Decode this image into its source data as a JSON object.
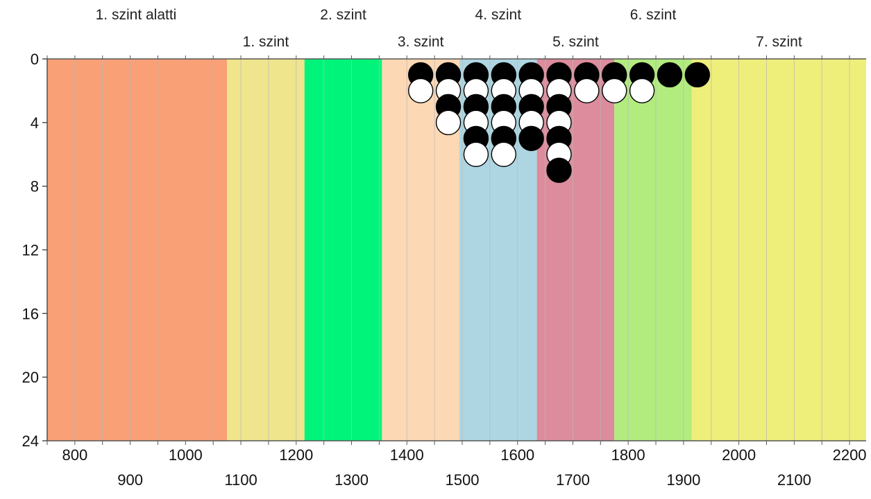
{
  "chart_data": {
    "type": "scatter",
    "xlim": [
      750,
      2230
    ],
    "ylim": [
      0,
      24
    ],
    "y_inverted": true,
    "x_ticks_row1": [
      800,
      1000,
      1200,
      1400,
      1600,
      1800,
      2000,
      2200
    ],
    "x_ticks_row2": [
      900,
      1100,
      1300,
      1500,
      1700,
      1900,
      2100
    ],
    "y_ticks": [
      0,
      4,
      8,
      12,
      16,
      20,
      24
    ],
    "grid_x_step": 50,
    "bands": [
      {
        "label": "1. szint alatti",
        "from": 750,
        "to": 1075,
        "color": "#f9a077",
        "label_row": "top"
      },
      {
        "label": "1. szint",
        "from": 1075,
        "to": 1215,
        "color": "#efe58c",
        "label_row": "bottom"
      },
      {
        "label": "2. szint",
        "from": 1215,
        "to": 1355,
        "color": "#00f47a",
        "label_row": "top"
      },
      {
        "label": "3. szint",
        "from": 1355,
        "to": 1495,
        "color": "#fdd8b4",
        "label_row": "bottom"
      },
      {
        "label": "4. szint",
        "from": 1495,
        "to": 1635,
        "color": "#aed6e2",
        "label_row": "top"
      },
      {
        "label": "5. szint",
        "from": 1635,
        "to": 1775,
        "color": "#dc8c9c",
        "label_row": "bottom"
      },
      {
        "label": "6. szint",
        "from": 1775,
        "to": 1915,
        "color": "#b2ec7f",
        "label_row": "top"
      },
      {
        "label": "7. szint",
        "from": 1915,
        "to": 2230,
        "color": "#eeef7b",
        "label_row": "bottom"
      }
    ],
    "points": [
      {
        "x": 1425,
        "y": 1,
        "color": "black"
      },
      {
        "x": 1475,
        "y": 1,
        "color": "black"
      },
      {
        "x": 1525,
        "y": 1,
        "color": "black"
      },
      {
        "x": 1575,
        "y": 1,
        "color": "black"
      },
      {
        "x": 1625,
        "y": 1,
        "color": "black"
      },
      {
        "x": 1675,
        "y": 1,
        "color": "black"
      },
      {
        "x": 1725,
        "y": 1,
        "color": "black"
      },
      {
        "x": 1775,
        "y": 1,
        "color": "black"
      },
      {
        "x": 1825,
        "y": 1,
        "color": "black"
      },
      {
        "x": 1875,
        "y": 1,
        "color": "black"
      },
      {
        "x": 1925,
        "y": 1,
        "color": "black"
      },
      {
        "x": 1425,
        "y": 2,
        "color": "white"
      },
      {
        "x": 1475,
        "y": 2,
        "color": "white"
      },
      {
        "x": 1525,
        "y": 2,
        "color": "white"
      },
      {
        "x": 1575,
        "y": 2,
        "color": "white"
      },
      {
        "x": 1625,
        "y": 2,
        "color": "white"
      },
      {
        "x": 1675,
        "y": 2,
        "color": "white"
      },
      {
        "x": 1725,
        "y": 2,
        "color": "white"
      },
      {
        "x": 1775,
        "y": 2,
        "color": "white"
      },
      {
        "x": 1825,
        "y": 2,
        "color": "white"
      },
      {
        "x": 1475,
        "y": 3,
        "color": "black"
      },
      {
        "x": 1525,
        "y": 3,
        "color": "black"
      },
      {
        "x": 1575,
        "y": 3,
        "color": "black"
      },
      {
        "x": 1625,
        "y": 3,
        "color": "black"
      },
      {
        "x": 1675,
        "y": 3,
        "color": "black"
      },
      {
        "x": 1475,
        "y": 4,
        "color": "white"
      },
      {
        "x": 1525,
        "y": 4,
        "color": "white"
      },
      {
        "x": 1575,
        "y": 4,
        "color": "white"
      },
      {
        "x": 1625,
        "y": 4,
        "color": "white"
      },
      {
        "x": 1675,
        "y": 4,
        "color": "white"
      },
      {
        "x": 1525,
        "y": 5,
        "color": "black"
      },
      {
        "x": 1575,
        "y": 5,
        "color": "black"
      },
      {
        "x": 1625,
        "y": 5,
        "color": "black"
      },
      {
        "x": 1675,
        "y": 5,
        "color": "black"
      },
      {
        "x": 1525,
        "y": 6,
        "color": "white"
      },
      {
        "x": 1575,
        "y": 6,
        "color": "white"
      },
      {
        "x": 1675,
        "y": 6,
        "color": "white"
      },
      {
        "x": 1675,
        "y": 7,
        "color": "black"
      }
    ]
  }
}
